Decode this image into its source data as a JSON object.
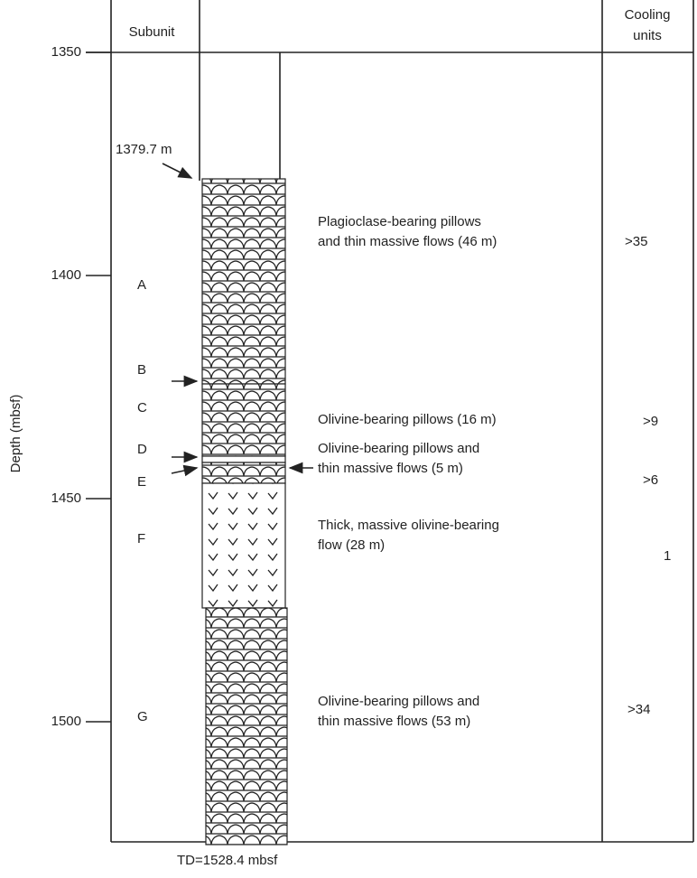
{
  "header": {
    "subunit": "Subunit",
    "cooling": [
      "Cooling",
      "units"
    ]
  },
  "axis": {
    "label": "Depth (mbsf)",
    "ticks": [
      1350,
      1400,
      1450,
      1500
    ]
  },
  "top_label": "1379.7 m",
  "bottom_label": "TD=1528.4 mbsf",
  "units": [
    {
      "subunit": "A",
      "description": [
        "Plagioclase-bearing pillows",
        "and thin massive flows (46 m)"
      ],
      "cooling": ">35"
    },
    {
      "subunit": "B"
    },
    {
      "subunit": "C",
      "description": [
        "Olivine-bearing pillows  (16 m)"
      ],
      "cooling": ">9"
    },
    {
      "subunit": "D",
      "description": [
        "Olivine-bearing pillows and",
        "thin massive flows (5 m)"
      ],
      "cooling": ">6"
    },
    {
      "subunit": "E"
    },
    {
      "subunit": "F",
      "description": [
        "Thick, massive olivine-bearing",
        "flow (28 m)"
      ],
      "cooling": "1"
    },
    {
      "subunit": "G",
      "description": [
        "Olivine-bearing  pillows and",
        "thin massive flows (53 m)"
      ],
      "cooling": ">34"
    }
  ]
}
